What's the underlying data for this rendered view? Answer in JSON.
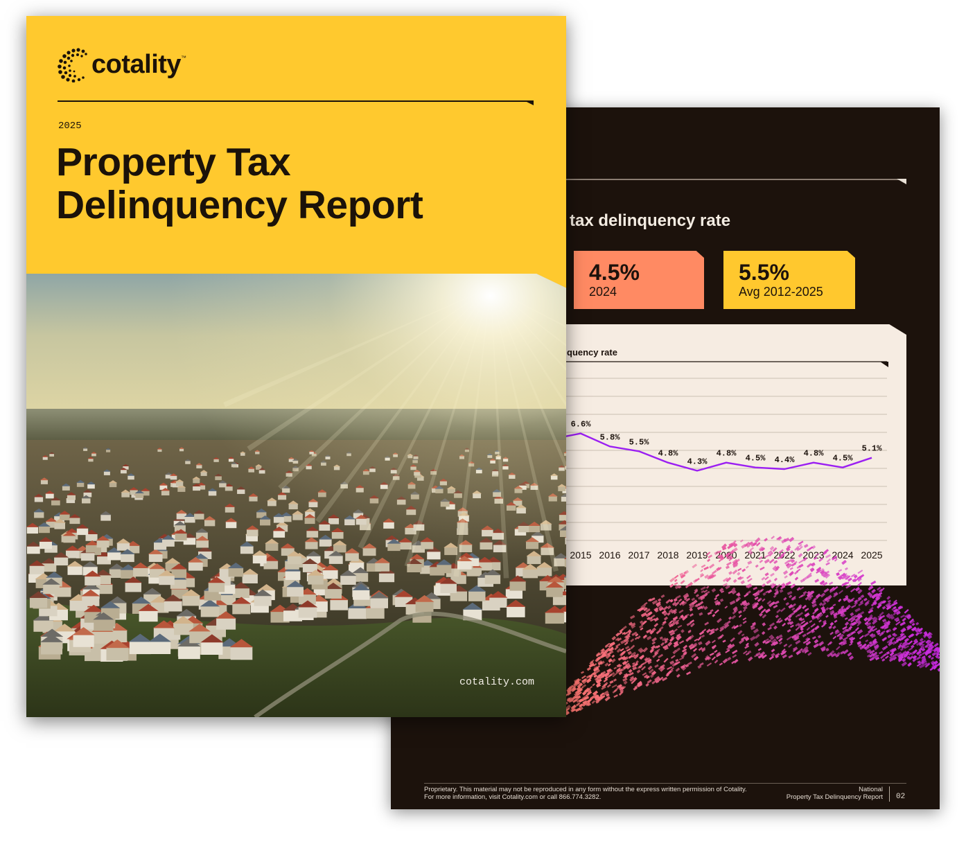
{
  "cover": {
    "brand": "cotality",
    "brand_tm": "™",
    "year": "2025",
    "title_line1": "Property Tax",
    "title_line2": "Delinquency Report",
    "url": "cotality.com"
  },
  "inner_page": {
    "heading": "tax delinquency rate",
    "stats": [
      {
        "value": "4.5%",
        "label": "2024",
        "color": "#ff8a63"
      },
      {
        "value": "5.5%",
        "label": "Avg 2012-2025",
        "color": "#ffc82e"
      }
    ],
    "chart_title": "quency rate",
    "footer_left_line1": "Proprietary. This material may not be reproduced in any form without the express written permission of Cotality.",
    "footer_left_line2": "For more information, visit Cotality.com or call 866.774.3282.",
    "footer_right_line1": "National",
    "footer_right_line2": "Property Tax Delinquency Report",
    "page_number": "02"
  },
  "chart_data": {
    "type": "line",
    "title": "quency rate",
    "x": [
      "2015",
      "2016",
      "2017",
      "2018",
      "2019",
      "2020",
      "2021",
      "2022",
      "2023",
      "2024",
      "2025"
    ],
    "series": [
      {
        "values": [
          6.6,
          5.8,
          5.5,
          4.8,
          4.3,
          4.8,
          4.5,
          4.4,
          4.8,
          4.5,
          5.1
        ],
        "color": "#9b1ff2"
      }
    ],
    "data_labels": [
      "6.6%",
      "5.8%",
      "5.5%",
      "4.8%",
      "4.3%",
      "4.8%",
      "4.5%",
      "4.4%",
      "4.8%",
      "4.5%",
      "5.1%"
    ],
    "ylim": [
      0,
      10
    ],
    "grid": true
  }
}
